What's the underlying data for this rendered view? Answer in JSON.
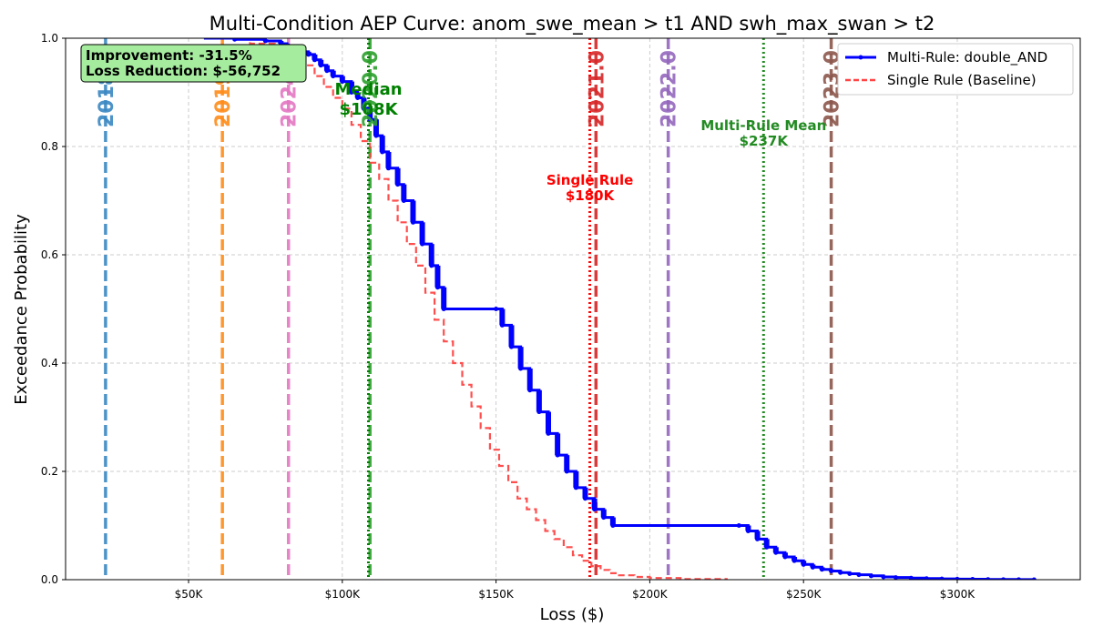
{
  "chart_data": {
    "type": "line",
    "title": "Multi-Condition AEP Curve: anom_swe_mean > t1 AND swh_max_swan > t2",
    "xlabel": "Loss ($)",
    "ylabel": "Exceedance Probability",
    "xlim": [
      10000,
      340000
    ],
    "ylim": [
      0,
      1.0
    ],
    "grid": true,
    "legend_position": "top-right",
    "x_ticks": [
      {
        "value": 50000,
        "label": "$50K"
      },
      {
        "value": 100000,
        "label": "$100K"
      },
      {
        "value": 150000,
        "label": "$150K"
      },
      {
        "value": 200000,
        "label": "$200K"
      },
      {
        "value": 250000,
        "label": "$250K"
      },
      {
        "value": 300000,
        "label": "$300K"
      }
    ],
    "y_ticks": [
      {
        "value": 0.0,
        "label": "0.0"
      },
      {
        "value": 0.2,
        "label": "0.2"
      },
      {
        "value": 0.4,
        "label": "0.4"
      },
      {
        "value": 0.6,
        "label": "0.6"
      },
      {
        "value": 0.8,
        "label": "0.8"
      },
      {
        "value": 1.0,
        "label": "1.0"
      }
    ],
    "series": [
      {
        "name": "Multi-Rule: double_AND",
        "color": "#0000ff",
        "style": "solid-step",
        "x": [
          55000,
          65000,
          75000,
          80000,
          82000,
          85000,
          87000,
          89000,
          91000,
          93000,
          95000,
          97000,
          100000,
          103000,
          105000,
          107000,
          109000,
          111000,
          113000,
          115000,
          118000,
          120000,
          123000,
          126000,
          129000,
          131000,
          133000,
          150000,
          152000,
          155000,
          158000,
          161000,
          164000,
          167000,
          170000,
          173000,
          176000,
          179000,
          182000,
          185000,
          188000,
          229000,
          232000,
          235000,
          238000,
          241000,
          244000,
          247000,
          250000,
          253000,
          256000,
          259000,
          262000,
          265000,
          268000,
          272000,
          276000,
          280000,
          285000,
          290000,
          295000,
          300000,
          305000,
          310000,
          315000,
          320000,
          325000
        ],
        "y": [
          1.0,
          0.998,
          0.995,
          0.99,
          0.985,
          0.98,
          0.975,
          0.97,
          0.96,
          0.95,
          0.94,
          0.93,
          0.92,
          0.9,
          0.89,
          0.87,
          0.85,
          0.82,
          0.79,
          0.76,
          0.73,
          0.7,
          0.66,
          0.62,
          0.58,
          0.54,
          0.5,
          0.5,
          0.47,
          0.43,
          0.39,
          0.35,
          0.31,
          0.27,
          0.23,
          0.2,
          0.17,
          0.15,
          0.13,
          0.115,
          0.1,
          0.1,
          0.09,
          0.075,
          0.06,
          0.05,
          0.042,
          0.035,
          0.028,
          0.023,
          0.019,
          0.016,
          0.013,
          0.011,
          0.009,
          0.007,
          0.005,
          0.004,
          0.003,
          0.002,
          0.0015,
          0.001,
          0.0008,
          0.0005,
          0.0003,
          0.0002,
          0.0
        ]
      },
      {
        "name": "Single Rule (Baseline)",
        "color": "#ff4444",
        "style": "dashed-step",
        "x": [
          55000,
          70000,
          78000,
          82000,
          85000,
          88000,
          91000,
          94000,
          97000,
          100000,
          103000,
          106000,
          109000,
          112000,
          115000,
          118000,
          121000,
          124000,
          127000,
          130000,
          133000,
          136000,
          139000,
          142000,
          145000,
          148000,
          151000,
          154000,
          157000,
          160000,
          163000,
          166000,
          169000,
          172000,
          175000,
          178000,
          181000,
          184000,
          187000,
          190000,
          195000,
          200000,
          210000,
          225000
        ],
        "y": [
          1.0,
          0.99,
          0.98,
          0.97,
          0.96,
          0.95,
          0.93,
          0.91,
          0.89,
          0.87,
          0.84,
          0.81,
          0.77,
          0.74,
          0.7,
          0.66,
          0.62,
          0.58,
          0.53,
          0.48,
          0.44,
          0.4,
          0.36,
          0.32,
          0.28,
          0.24,
          0.21,
          0.18,
          0.15,
          0.13,
          0.11,
          0.09,
          0.075,
          0.06,
          0.045,
          0.035,
          0.025,
          0.018,
          0.012,
          0.008,
          0.005,
          0.003,
          0.001,
          0.0
        ]
      }
    ],
    "year_markers": [
      {
        "label": "2018.0",
        "x": 23000,
        "color": "#3a87c2"
      },
      {
        "label": "2019.0",
        "x": 61000,
        "color": "#ff8c1a"
      },
      {
        "label": "2024.0",
        "x": 82500,
        "color": "#e377c2"
      },
      {
        "label": "2020.0",
        "x": 109000,
        "color": "#2ca02c"
      },
      {
        "label": "2021.0",
        "x": 182500,
        "color": "#d62728"
      },
      {
        "label": "2022.0",
        "x": 206000,
        "color": "#9467bd"
      },
      {
        "label": "2023.0",
        "x": 259000,
        "color": "#8c564b"
      }
    ],
    "reference_lines": [
      {
        "label_line1": "Median",
        "label_line2": "$108K",
        "x": 108500,
        "color": "#008000"
      },
      {
        "label_line1": "Single Rule",
        "label_line2": "$180K",
        "x": 180500,
        "color": "#ff0000"
      },
      {
        "label_line1": "Multi-Rule Mean",
        "label_line2": "$237K",
        "x": 237000,
        "color": "#228b22"
      }
    ],
    "annotation_box": {
      "line1": "Improvement: -31.5%",
      "line2": "Loss Reduction: $-56,752",
      "background": "#a6ec9f"
    }
  }
}
